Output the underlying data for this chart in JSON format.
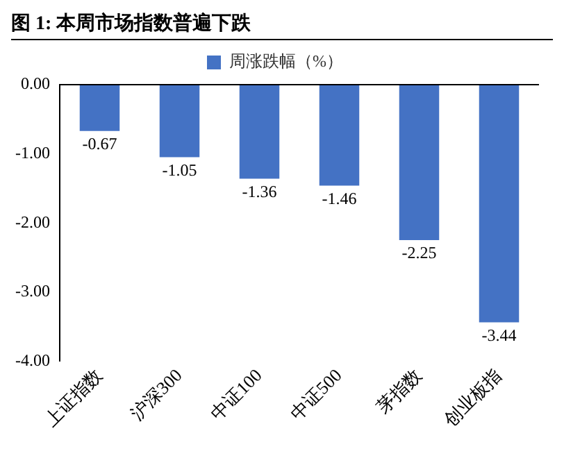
{
  "chart_data": {
    "type": "bar",
    "title": "图 1:  本周市场指数普遍下跌",
    "categories": [
      "上证指数",
      "沪深300",
      "中证100",
      "中证500",
      "茅指数",
      "创业板指"
    ],
    "series": [
      {
        "name": "周涨跌幅（%）",
        "color": "#4472c4",
        "values": [
          -0.67,
          -1.05,
          -1.36,
          -1.46,
          -2.25,
          -3.44
        ]
      }
    ],
    "ylim": [
      -4,
      0
    ],
    "yticks": [
      {
        "value": 0,
        "label": "0.00"
      },
      {
        "value": -1,
        "label": "-1.00"
      },
      {
        "value": -2,
        "label": "-2.00"
      },
      {
        "value": -3,
        "label": "-3.00"
      },
      {
        "value": -4,
        "label": "-4.00"
      }
    ],
    "grid": false,
    "legend": "top",
    "data_labels": true
  }
}
